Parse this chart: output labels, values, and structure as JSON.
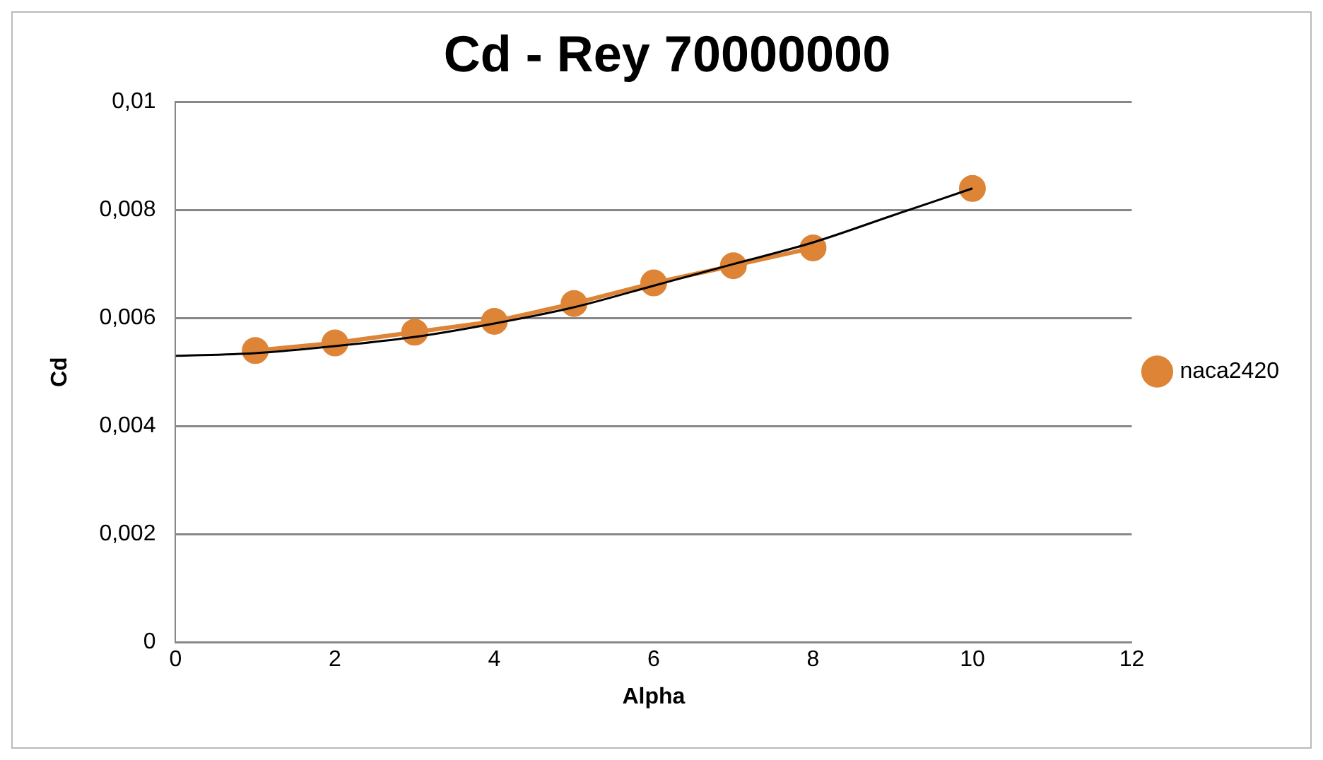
{
  "chart_data": {
    "type": "line",
    "title": "Cd - Rey 70000000",
    "xlabel": "Alpha",
    "ylabel": "Cd",
    "xlim": [
      0,
      12
    ],
    "xticks": [
      0,
      2,
      4,
      6,
      8,
      10,
      12
    ],
    "ylim": [
      0,
      0.01
    ],
    "yticks": [
      0,
      {
        "value": 0.002,
        "label": "0,002"
      },
      {
        "value": 0.004,
        "label": "0,004"
      },
      {
        "value": 0.006,
        "label": "0,006"
      },
      {
        "value": 0.008,
        "label": "0,008"
      },
      {
        "value": 0.01,
        "label": "0,01"
      }
    ],
    "grid": "y",
    "legend": "right",
    "marker": "circle",
    "line_style": "solid",
    "series": [
      {
        "name": "naca2420",
        "color": "#dd8437",
        "x": [
          1,
          2,
          3,
          4,
          5,
          6,
          7,
          8,
          9,
          10
        ],
        "values": [
          0.0054,
          0.00554,
          0.00574,
          0.00594,
          0.00627,
          0.00665,
          0.00697,
          0.0073,
          null,
          0.0084
        ]
      },
      {
        "type": "line",
        "color": "#000000",
        "marker": "none",
        "x": [
          0,
          1,
          2,
          3,
          4,
          5,
          6,
          7,
          8,
          9,
          10
        ],
        "values": [
          0.0053,
          0.00535,
          0.00548,
          0.00565,
          0.0059,
          0.0062,
          0.0066,
          0.007,
          0.0074,
          0.0079,
          0.0084
        ]
      }
    ]
  }
}
